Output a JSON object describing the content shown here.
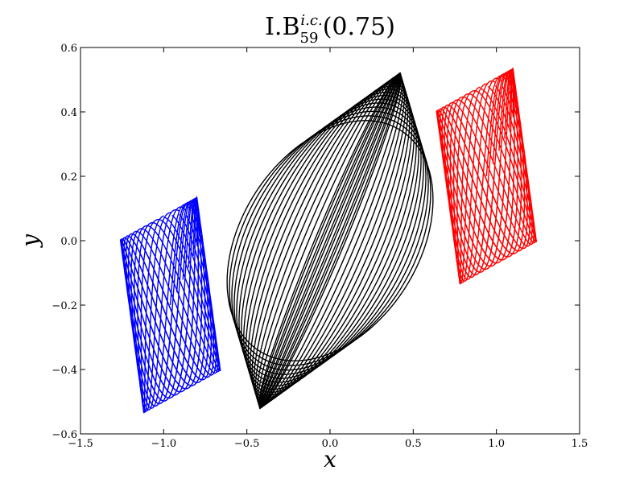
{
  "chart_data": {
    "type": "line",
    "title": {
      "main": "I.B",
      "subscript": "59",
      "superscript": "i.c.",
      "suffix": "(0.75)"
    },
    "xlabel": "x",
    "ylabel": "y",
    "xlim": [
      -1.5,
      1.5
    ],
    "ylim": [
      -0.6,
      0.6
    ],
    "xticks": [
      -1.5,
      -1.0,
      -0.5,
      0.0,
      0.5,
      1.0,
      1.5
    ],
    "yticks": [
      -0.6,
      -0.4,
      -0.2,
      0.0,
      0.2,
      0.4,
      0.6
    ],
    "xtick_labels": [
      "−1.5",
      "−1.0",
      "−0.5",
      "0.0",
      "0.5",
      "1.0",
      "1.5"
    ],
    "ytick_labels": [
      "−0.6",
      "−0.4",
      "−0.2",
      "0.0",
      "0.2",
      "0.4",
      "0.6"
    ],
    "grid": false,
    "legend": "none",
    "colors": [
      "#0000ff",
      "#000000",
      "#ff0000"
    ],
    "series": [
      {
        "color": "#0000ff",
        "cx": -0.96,
        "cy": -0.2,
        "ax": 0.3,
        "ay": 0.3,
        "ratio": 1.98,
        "phase_step": 0.2,
        "loops": 16
      },
      {
        "color": "#000000",
        "cx": 0.0,
        "cy": 0.0,
        "ax": 0.73,
        "ay": 0.33,
        "ratio": 1.0,
        "phase_step": 0.24,
        "loops": 22
      },
      {
        "color": "#ff0000",
        "cx": 0.94,
        "cy": 0.2,
        "ax": 0.3,
        "ay": 0.3,
        "ratio": 1.98,
        "phase_step": 0.2,
        "loops": 16
      }
    ]
  }
}
